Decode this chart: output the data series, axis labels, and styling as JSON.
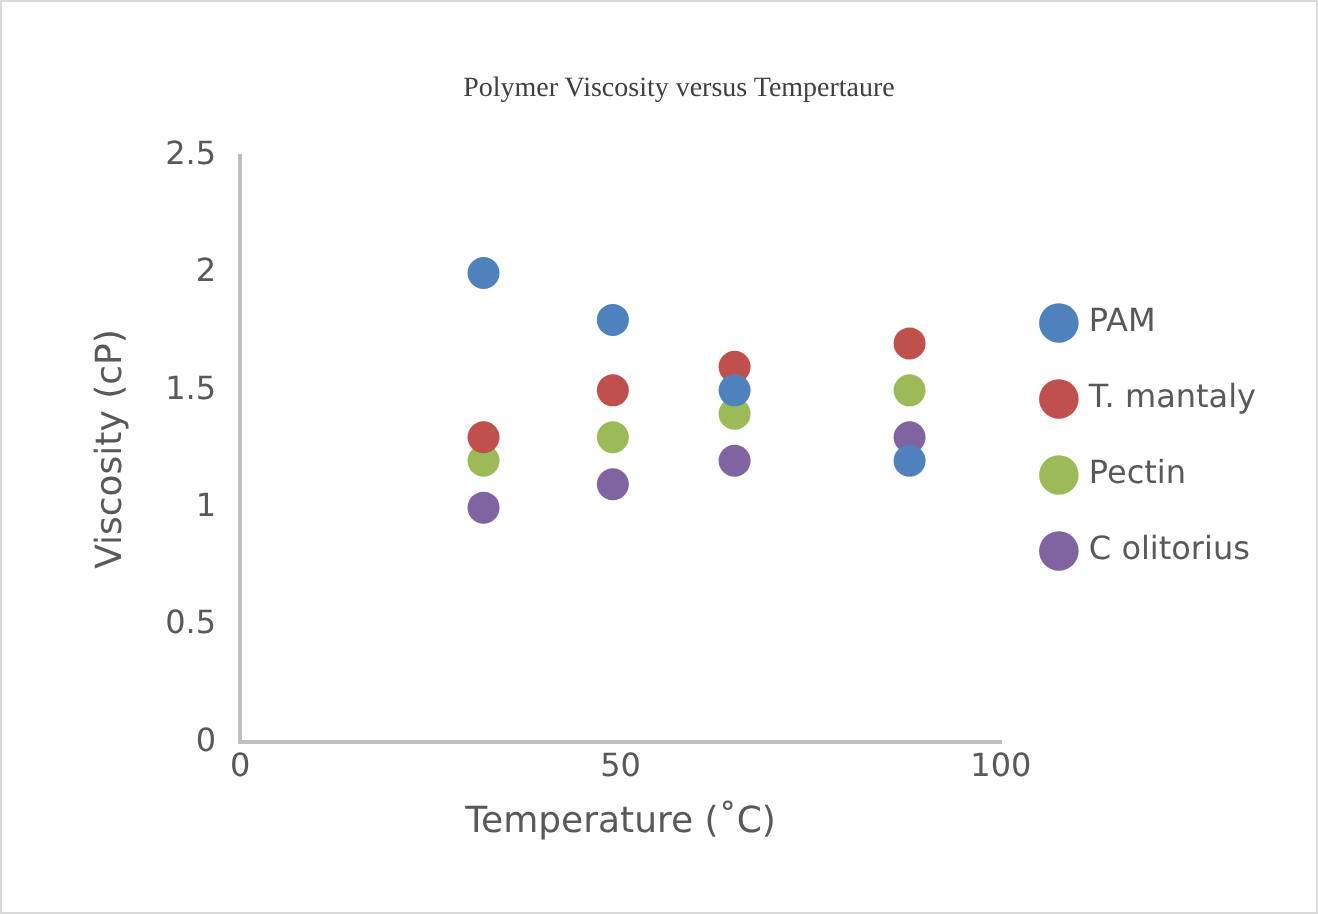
{
  "chart_data": {
    "type": "scatter",
    "title": "Polymer Viscosity versus Tempertaure",
    "xlabel": "Temperature (˚C)",
    "ylabel": "Viscosity (cP)",
    "x": [
      32,
      49,
      65,
      88
    ],
    "series": [
      {
        "name": "PAM",
        "color": "#4f81bd",
        "values": [
          2,
          1.8,
          1.5,
          1.2
        ]
      },
      {
        "name": "T. mantaly",
        "color": "#c0504d",
        "values": [
          1.3,
          1.5,
          1.6,
          1.7
        ]
      },
      {
        "name": "Pectin",
        "color": "#9bbb59",
        "values": [
          1.2,
          1.3,
          1.4,
          1.5
        ]
      },
      {
        "name": "C olitorius",
        "color": "#8064a2",
        "values": [
          1,
          1.1,
          1.2,
          1.3
        ]
      }
    ],
    "xlim": [
      0,
      100
    ],
    "xticks": [
      0,
      50,
      100
    ],
    "ylim": [
      0,
      2.5
    ],
    "yticks": [
      0,
      0.5,
      1,
      1.5,
      2,
      2.5
    ],
    "grid": false,
    "legend": "right",
    "marker": "circle"
  }
}
